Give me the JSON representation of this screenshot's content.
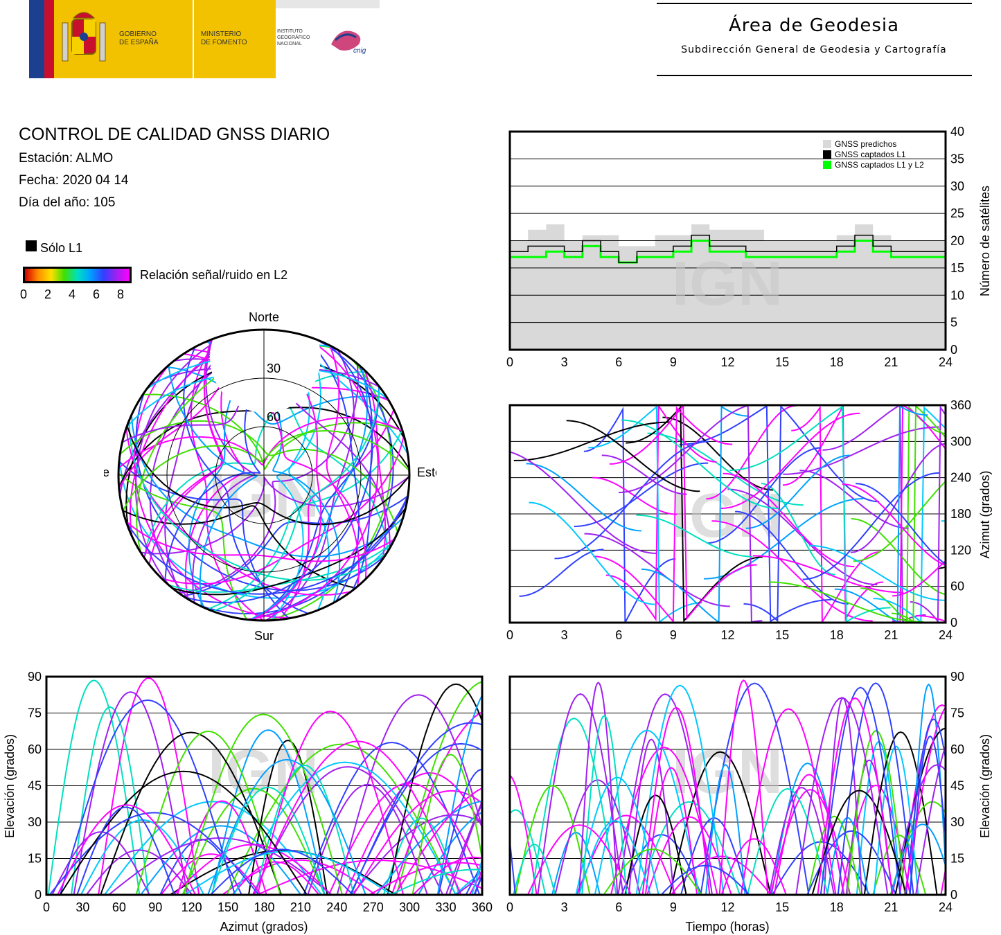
{
  "header": {
    "gov_line1": "GOBIERNO",
    "gov_line2": "DE ESPAÑA",
    "min_line1": "MINISTERIO",
    "min_line2": "DE FOMENTO",
    "ign_line1": "INSTITUTO",
    "ign_line2": "GEOGRÁFICO",
    "ign_line3": "NACIONAL",
    "ign_logo_text": "cnig",
    "area_title": "Área de Geodesia",
    "area_subtitle": "Subdirección General de Geodesia y Cartografía"
  },
  "info": {
    "title": "CONTROL DE CALIDAD GNSS DIARIO",
    "station": "Estación: ALMO",
    "date": "Fecha: 2020 04 14",
    "doy": "Día del año: 105"
  },
  "legend": {
    "only_l1": "Sólo L1",
    "snr_label": "Relación señal/ruido en L2",
    "snr_ticks": [
      "0",
      "2",
      "4",
      "6",
      "8"
    ],
    "snr_colors": [
      "#d00000",
      "#ff8c00",
      "#ffe000",
      "#40e000",
      "#00e0c0",
      "#00a0ff",
      "#3040ff",
      "#a020f0",
      "#ff00ff"
    ],
    "only_l1_color": "#000000"
  },
  "watermark": "IGN",
  "colors": {
    "predicted": "#d9d9d9",
    "l1": "#000000",
    "l1l2": "#00ff00"
  },
  "chart_data": [
    {
      "id": "skyplot",
      "type": "scatter",
      "title": "",
      "directions": {
        "north": "Norte",
        "south": "Sur",
        "east": "Este",
        "west": "Oeste"
      },
      "ring_labels": [
        "30",
        "60"
      ],
      "coordinate": "polar azimuth/elevation"
    },
    {
      "id": "satellites",
      "type": "line",
      "ylabel": "Número de satélites",
      "xlim": [
        0,
        24
      ],
      "ylim": [
        0,
        40
      ],
      "x_ticks": [
        "0",
        "3",
        "6",
        "9",
        "12",
        "15",
        "18",
        "21",
        "24"
      ],
      "y_ticks": [
        "0",
        "5",
        "10",
        "15",
        "20",
        "25",
        "30",
        "35",
        "40"
      ],
      "legend_position": "top-right",
      "series": [
        {
          "name": "GNSS predichos",
          "x": [
            0,
            1,
            2,
            3,
            4,
            5,
            6,
            7,
            8,
            9,
            10,
            11,
            12,
            13,
            14,
            15,
            16,
            17,
            18,
            19,
            20,
            21,
            22,
            23,
            24
          ],
          "values": [
            20,
            22,
            23,
            20,
            21,
            21,
            19,
            19,
            21,
            21,
            23,
            22,
            22,
            22,
            20,
            20,
            20,
            20,
            21,
            23,
            21,
            20,
            20,
            20,
            20
          ]
        },
        {
          "name": "GNSS captados L1",
          "x": [
            0,
            1,
            2,
            3,
            4,
            5,
            6,
            7,
            8,
            9,
            10,
            11,
            12,
            13,
            14,
            15,
            16,
            17,
            18,
            19,
            20,
            21,
            22,
            23,
            24
          ],
          "values": [
            18,
            19,
            19,
            18,
            20,
            18,
            16,
            18,
            18,
            19,
            21,
            19,
            19,
            18,
            18,
            18,
            18,
            18,
            19,
            21,
            19,
            18,
            18,
            18,
            18
          ]
        },
        {
          "name": "GNSS captados L1 y L2",
          "x": [
            0,
            1,
            2,
            3,
            4,
            5,
            6,
            7,
            8,
            9,
            10,
            11,
            12,
            13,
            14,
            15,
            16,
            17,
            18,
            19,
            20,
            21,
            22,
            23,
            24
          ],
          "values": [
            17,
            17,
            18,
            17,
            19,
            17,
            16,
            17,
            17,
            18,
            20,
            18,
            18,
            17,
            17,
            17,
            17,
            17,
            18,
            20,
            18,
            17,
            17,
            17,
            17
          ]
        }
      ]
    },
    {
      "id": "azimuth_time",
      "type": "scatter",
      "ylabel": "Azimut (grados)",
      "xlim": [
        0,
        24
      ],
      "ylim": [
        0,
        360
      ],
      "x_ticks": [
        "0",
        "3",
        "6",
        "9",
        "12",
        "15",
        "18",
        "21",
        "24"
      ],
      "y_ticks": [
        "0",
        "60",
        "120",
        "180",
        "240",
        "300",
        "360"
      ]
    },
    {
      "id": "elevation_azimuth",
      "type": "scatter",
      "xlabel": "Azimut (grados)",
      "ylabel": "Elevación (grados)",
      "xlim": [
        0,
        360
      ],
      "ylim": [
        0,
        90
      ],
      "x_ticks": [
        "0",
        "30",
        "60",
        "90",
        "120",
        "150",
        "180",
        "210",
        "240",
        "270",
        "300",
        "330",
        "360"
      ],
      "y_ticks": [
        "0",
        "15",
        "30",
        "45",
        "60",
        "75",
        "90"
      ]
    },
    {
      "id": "elevation_time",
      "type": "scatter",
      "xlabel": "Tiempo (horas)",
      "ylabel": "Elevación (grados)",
      "xlim": [
        0,
        24
      ],
      "ylim": [
        0,
        90
      ],
      "x_ticks": [
        "0",
        "3",
        "6",
        "9",
        "12",
        "15",
        "18",
        "21",
        "24"
      ],
      "y_ticks": [
        "0",
        "15",
        "30",
        "45",
        "60",
        "75",
        "90"
      ]
    }
  ]
}
